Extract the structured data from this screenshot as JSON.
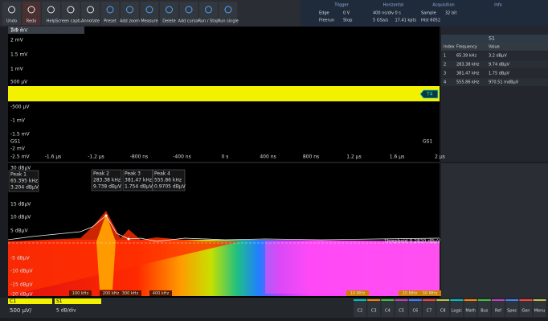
{
  "toolbar": {
    "buttons": [
      "Undo",
      "Redo",
      "Help",
      "Screen capture",
      "Annotate",
      "Preset",
      "Add zoom",
      "Measure",
      "Delete",
      "Add cursor",
      "Run / Stop",
      "Run single"
    ]
  },
  "status": {
    "trigger": {
      "title": "Trigger",
      "items": [
        "Edge",
        "0 V",
        "Freerun",
        "Stop"
      ]
    },
    "horizontal": {
      "title": "Horizontal",
      "items": [
        "400 ns/div",
        "0 s",
        "5 GSa/s",
        "17.41 kpts"
      ]
    },
    "acquisition": {
      "title": "Acquisition",
      "items": [
        "Sample",
        "32 bit",
        "Hist 6052"
      ]
    },
    "info": {
      "title": "Info"
    }
  },
  "time_view": {
    "tab": "Tab 1",
    "y_labels": [
      "2.5 mV",
      "2 mV",
      "1.5 mV",
      "1 mV",
      "500 µV",
      "-500 µV",
      "-1 mV",
      "-1.5 mV",
      "-2 mV",
      "-2.5 mV"
    ],
    "x_labels": [
      "-1.6 µs",
      "-1.2 µs",
      "-800 ns",
      "-400 ns",
      "0 s",
      "400 ns",
      "800 ns",
      "1.2 µs",
      "1.6 µs",
      "2 µs"
    ],
    "source": "GS1",
    "marker": "T4"
  },
  "spectrum_view": {
    "y_labels": [
      "30 dBµV",
      "15 dBµV",
      "10 dBµV",
      "5 dBµV",
      "-5 dBµV",
      "-10 dBµV",
      "-15 dBµV",
      "-20 dBµV"
    ],
    "peaks": [
      {
        "name": "Peak 1",
        "frequency": "65.395 kHz",
        "level": "3.204 dBµV"
      },
      {
        "name": "Peak 2",
        "frequency": "283.38 kHz",
        "level": "9.738 dBµV"
      },
      {
        "name": "Peak 3",
        "frequency": "381.47 kHz",
        "level": "1.754 dBµV"
      },
      {
        "name": "Peak 4",
        "frequency": "555.86 kHz",
        "level": "0.9705 dBµV"
      }
    ],
    "threshold": "Threshold 0.2820 dBµV",
    "x_labels": [
      "100 kHz",
      "200 kHz",
      "300 kHz",
      "400 kHz",
      "10 MHz",
      "20 MHz",
      "30 MHz"
    ]
  },
  "results_table": {
    "title": "S1",
    "columns": [
      "Index",
      "Frequency",
      "Value"
    ],
    "rows": [
      [
        "1",
        "65.39 kHz",
        "3.2 dBµV"
      ],
      [
        "2",
        "283.38 kHz",
        "9.74 dBµV"
      ],
      [
        "3",
        "381.47 kHz",
        "1.75 dBµV"
      ],
      [
        "4",
        "555.86 kHz",
        "970.51 mdBµV"
      ]
    ]
  },
  "bottom_bar": {
    "channel": "C1",
    "scale": "500 µV/",
    "spectrum": "S1",
    "spectrum_scale": "5 dB/div",
    "buttons": [
      "C2",
      "C3",
      "C4",
      "C5",
      "C6",
      "C7",
      "C8",
      "Logic",
      "Math",
      "Bus",
      "Ref",
      "Spec",
      "Gen",
      "Menu"
    ]
  }
}
